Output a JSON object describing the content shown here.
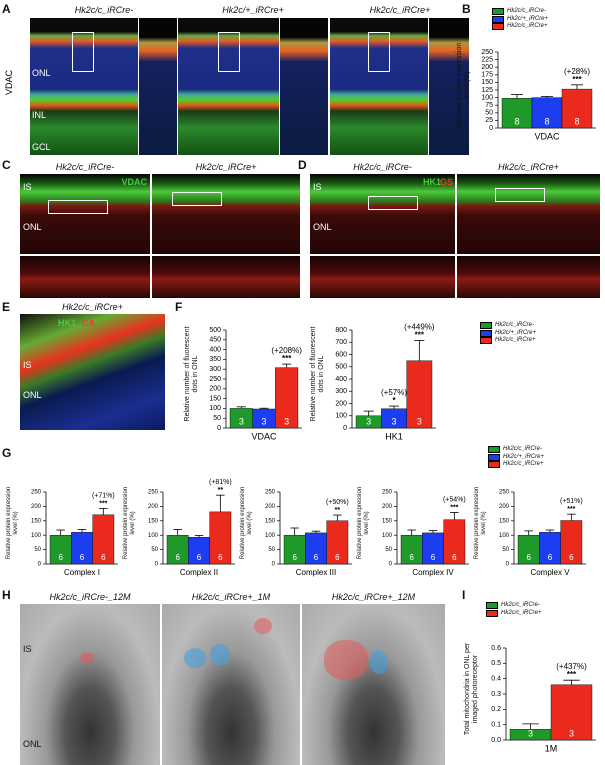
{
  "labels": {
    "letters": [
      "A",
      "B",
      "C",
      "D",
      "E",
      "F",
      "G",
      "H",
      "I"
    ],
    "A": {
      "genotypes": [
        "Hk2c/c_iRCre-",
        "Hk2c/+_iRCre+",
        "Hk2c/c_iRCre+"
      ],
      "stain": "VDAC",
      "layers": [
        "ONL",
        "INL",
        "GCL"
      ]
    },
    "C": {
      "genotypes": [
        "Hk2c/c_iRCre-",
        "Hk2c/c_iRCre+"
      ],
      "channel": "VDAC",
      "layers": [
        "IS",
        "ONL"
      ]
    },
    "D": {
      "genotypes": [
        "Hk2c/c_iRCre-",
        "Hk2c/c_iRCre+"
      ],
      "channels": [
        "HK1",
        "GS"
      ],
      "layers": [
        "IS",
        "ONL"
      ]
    },
    "E": {
      "genotype": "Hk2c/c_iRCre+",
      "channels": [
        "HK1",
        "CA"
      ],
      "layers": [
        "IS",
        "ONL"
      ]
    },
    "H": {
      "genotypes": [
        "Hk2c/c_iRCre-_12M",
        "Hk2c/c_iRCre+_1M",
        "Hk2c/c_iRCre+_12M"
      ],
      "layers": [
        "IS",
        "ONL"
      ]
    }
  },
  "chart_data": [
    {
      "type": "bar",
      "ylabel": "Relative protein expression level (%)",
      "xlabel": "VDAC",
      "ylim": [
        0,
        250
      ],
      "yticks": [
        0,
        25,
        50,
        75,
        100,
        125,
        150,
        175,
        200,
        225,
        250
      ],
      "legend": true,
      "series": [
        {
          "name": "Hk2c/c_iRCre-",
          "color": "#1f9a2a",
          "values": [
            98
          ],
          "errors": [
            12
          ],
          "n": [
            8
          ]
        },
        {
          "name": "Hk2c/+_iRCre+",
          "color": "#1c3ef0",
          "values": [
            100
          ],
          "errors": [
            4
          ],
          "n": [
            8
          ]
        },
        {
          "name": "Hk2c/c_iRCre+",
          "color": "#ea2a1c",
          "values": [
            128
          ],
          "errors": [
            14
          ],
          "n": [
            8
          ],
          "change": "(+28%)",
          "significance": "***"
        }
      ]
    },
    {
      "type": "bar",
      "ylabel": "Relative number of fluorescent dots in ONL",
      "xlabel": "VDAC",
      "ylim": [
        0,
        500
      ],
      "yticks": [
        0,
        50,
        100,
        150,
        200,
        250,
        300,
        350,
        400,
        450,
        500
      ],
      "legend": false,
      "series": [
        {
          "name": "Hk2c/c_iRCre-",
          "color": "#1f9a2a",
          "values": [
            100
          ],
          "errors": [
            8
          ],
          "n": [
            3
          ]
        },
        {
          "name": "Hk2c/+_iRCre+",
          "color": "#1c3ef0",
          "values": [
            97
          ],
          "errors": [
            4
          ],
          "n": [
            3
          ]
        },
        {
          "name": "Hk2c/c_iRCre+",
          "color": "#ea2a1c",
          "values": [
            308
          ],
          "errors": [
            18
          ],
          "n": [
            3
          ],
          "change": "(+208%)",
          "significance": "***"
        }
      ]
    },
    {
      "type": "bar",
      "ylabel": "Relative number of fluorescent dots in ONL",
      "xlabel": "HK1",
      "ylim": [
        0,
        800
      ],
      "yticks": [
        0,
        100,
        200,
        300,
        400,
        500,
        600,
        700,
        800
      ],
      "legend": true,
      "series": [
        {
          "name": "Hk2c/c_iRCre-",
          "color": "#1f9a2a",
          "values": [
            100
          ],
          "errors": [
            38
          ],
          "n": [
            3
          ]
        },
        {
          "name": "Hk2c/+_iRCre+",
          "color": "#1c3ef0",
          "values": [
            157
          ],
          "errors": [
            22
          ],
          "n": [
            3
          ],
          "change": "(+57%)",
          "significance": "*"
        },
        {
          "name": "Hk2c/c_iRCre+",
          "color": "#ea2a1c",
          "values": [
            549
          ],
          "errors": [
            165
          ],
          "n": [
            3
          ],
          "change": "(+449%)",
          "significance": "***"
        }
      ]
    },
    {
      "type": "bar",
      "ylabel": "Relative protein expression level (%)",
      "xlabel": "Complex I",
      "ylim": [
        0,
        250
      ],
      "yticks": [
        0,
        50,
        100,
        150,
        200,
        250
      ],
      "legend": false,
      "series": [
        {
          "name": "Hk2c/c_iRCre-",
          "color": "#1f9a2a",
          "values": [
            100
          ],
          "errors": [
            18
          ],
          "n": [
            6
          ]
        },
        {
          "name": "Hk2c/+_iRCre+",
          "color": "#1c3ef0",
          "values": [
            110
          ],
          "errors": [
            10
          ],
          "n": [
            6
          ]
        },
        {
          "name": "Hk2c/c_iRCre+",
          "color": "#ea2a1c",
          "values": [
            171
          ],
          "errors": [
            22
          ],
          "n": [
            6
          ],
          "change": "(+71%)",
          "significance": "***"
        }
      ]
    },
    {
      "type": "bar",
      "ylabel": "Relative protein expression level (%)",
      "xlabel": "Complex II",
      "ylim": [
        0,
        250
      ],
      "yticks": [
        0,
        50,
        100,
        150,
        200,
        250
      ],
      "legend": false,
      "series": [
        {
          "name": "Hk2c/c_iRCre-",
          "color": "#1f9a2a",
          "values": [
            100
          ],
          "errors": [
            20
          ],
          "n": [
            6
          ]
        },
        {
          "name": "Hk2c/+_iRCre+",
          "color": "#1c3ef0",
          "values": [
            93
          ],
          "errors": [
            6
          ],
          "n": [
            6
          ]
        },
        {
          "name": "Hk2c/c_iRCre+",
          "color": "#ea2a1c",
          "values": [
            181
          ],
          "errors": [
            58
          ],
          "n": [
            6
          ],
          "change": "(+81%)",
          "significance": "**"
        }
      ]
    },
    {
      "type": "bar",
      "ylabel": "Relative protein expression level (%)",
      "xlabel": "Complex III",
      "ylim": [
        0,
        250
      ],
      "yticks": [
        0,
        50,
        100,
        150,
        200,
        250
      ],
      "legend": false,
      "series": [
        {
          "name": "Hk2c/c_iRCre-",
          "color": "#1f9a2a",
          "values": [
            100
          ],
          "errors": [
            25
          ],
          "n": [
            6
          ]
        },
        {
          "name": "Hk2c/+_iRCre+",
          "color": "#1c3ef0",
          "values": [
            108
          ],
          "errors": [
            6
          ],
          "n": [
            6
          ]
        },
        {
          "name": "Hk2c/c_iRCre+",
          "color": "#ea2a1c",
          "values": [
            150
          ],
          "errors": [
            20
          ],
          "n": [
            6
          ],
          "change": "(+50%)",
          "significance": "**"
        }
      ]
    },
    {
      "type": "bar",
      "ylabel": "Relative protein expression level (%)",
      "xlabel": "Complex IV",
      "ylim": [
        0,
        250
      ],
      "yticks": [
        0,
        50,
        100,
        150,
        200,
        250
      ],
      "legend": false,
      "series": [
        {
          "name": "Hk2c/c_iRCre-",
          "color": "#1f9a2a",
          "values": [
            100
          ],
          "errors": [
            18
          ],
          "n": [
            6
          ]
        },
        {
          "name": "Hk2c/+_iRCre+",
          "color": "#1c3ef0",
          "values": [
            108
          ],
          "errors": [
            8
          ],
          "n": [
            6
          ]
        },
        {
          "name": "Hk2c/c_iRCre+",
          "color": "#ea2a1c",
          "values": [
            154
          ],
          "errors": [
            25
          ],
          "n": [
            6
          ],
          "change": "(+54%)",
          "significance": "***"
        }
      ]
    },
    {
      "type": "bar",
      "ylabel": "Relative protein expression level (%)",
      "xlabel": "Complex V",
      "ylim": [
        0,
        250
      ],
      "yticks": [
        0,
        50,
        100,
        150,
        200,
        250
      ],
      "legend": true,
      "series": [
        {
          "name": "Hk2c/c_iRCre-",
          "color": "#1f9a2a",
          "values": [
            100
          ],
          "errors": [
            15
          ],
          "n": [
            6
          ]
        },
        {
          "name": "Hk2c/+_iRCre+",
          "color": "#1c3ef0",
          "values": [
            110
          ],
          "errors": [
            8
          ],
          "n": [
            6
          ]
        },
        {
          "name": "Hk2c/c_iRCre+",
          "color": "#ea2a1c",
          "values": [
            151
          ],
          "errors": [
            22
          ],
          "n": [
            6
          ],
          "change": "(+51%)",
          "significance": "***"
        }
      ]
    },
    {
      "type": "bar",
      "ylabel": "Total mitochondria in ONL per imaged photoreceptor",
      "xlabel": "1M",
      "ylim": [
        0,
        0.6
      ],
      "yticks": [
        {
          "value": 0,
          "label": "0.0"
        },
        0.1,
        0.2,
        0.3,
        0.4,
        0.5,
        0.6
      ],
      "legend": true,
      "series": [
        {
          "name": "Hk2c/c_iRCre-",
          "color": "#1f9a2a",
          "values": [
            0.07
          ],
          "errors": [
            0.035
          ],
          "n": [
            3
          ]
        },
        {
          "name": "Hk2c/c_iRCre+",
          "color": "#ea2a1c",
          "values": [
            0.36
          ],
          "errors": [
            0.03
          ],
          "n": [
            3
          ],
          "change": "(+437%)",
          "significance": "***"
        }
      ]
    }
  ]
}
